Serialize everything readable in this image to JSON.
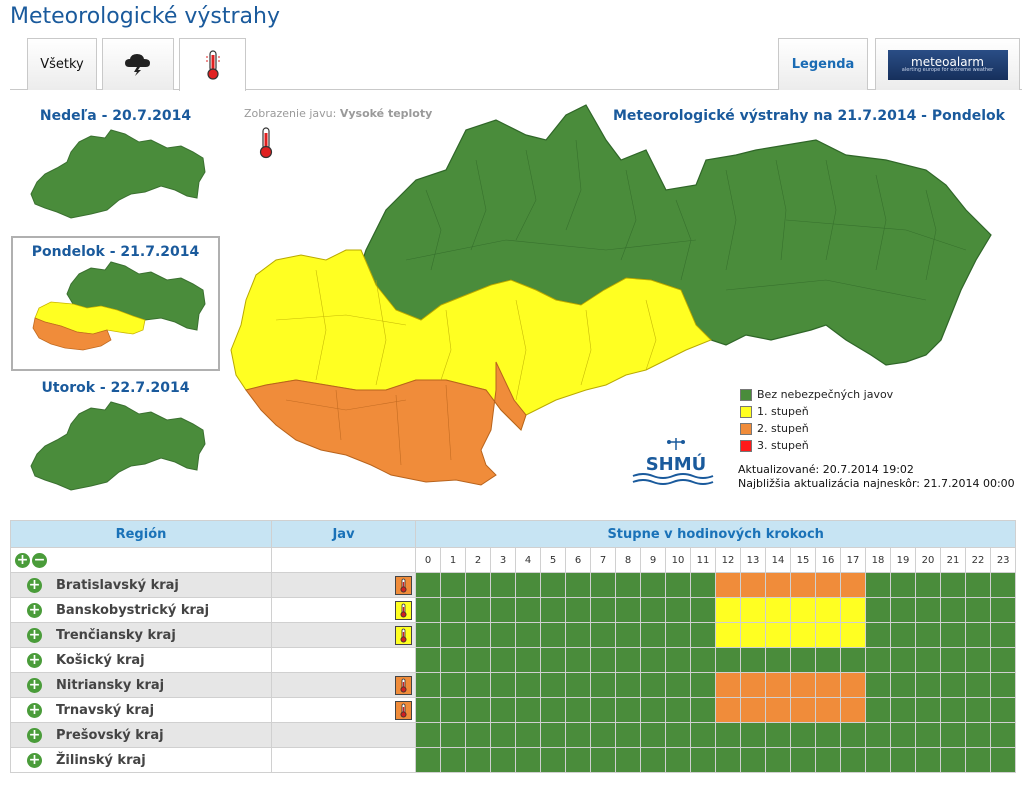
{
  "page": {
    "title": "Meteorologické výstrahy"
  },
  "tabs": {
    "all_label": "Všetky",
    "storm_icon": "storm-cloud-icon",
    "temperature_icon": "thermometer-icon",
    "legend_label": "Legenda",
    "meteoalarm_logo_main": "meteoalarm",
    "meteoalarm_logo_sub": "alerting europe for extreme weather"
  },
  "days": [
    {
      "title": "Nedeľa - 20.7.2014",
      "selected": false
    },
    {
      "title": "Pondelok - 21.7.2014",
      "selected": true
    },
    {
      "title": "Utorok - 22.7.2014",
      "selected": false
    }
  ],
  "display": {
    "label": "Zobrazenie javu:",
    "value": "Vysoké teploty"
  },
  "map": {
    "title": "Meteorologické výstrahy na 21.7.2014 - Pondelok"
  },
  "legend": [
    {
      "label": "Bez nebezpečných javov",
      "color": "#4a8c3b"
    },
    {
      "label": "1. stupeň",
      "color": "#ffff22"
    },
    {
      "label": "2. stupeň",
      "color": "#f08c3a"
    },
    {
      "label": "3. stupeň",
      "color": "#ff1a1a"
    }
  ],
  "logo": {
    "text": "SHMÚ"
  },
  "update": {
    "updated": "Aktualizované: 20.7.2014 19:02",
    "next": "Najbližšia aktualizácia najneskôr: 21.7.2014 00:00"
  },
  "table": {
    "headers": {
      "region": "Región",
      "phenomenon": "Jav",
      "steps": "Stupne v hodinových krokoch"
    },
    "hours": [
      "0",
      "1",
      "2",
      "3",
      "4",
      "5",
      "6",
      "7",
      "8",
      "9",
      "10",
      "11",
      "12",
      "13",
      "14",
      "15",
      "16",
      "17",
      "18",
      "19",
      "20",
      "21",
      "22",
      "23"
    ],
    "rows": [
      {
        "name": "Bratislavský kraj",
        "level": 2,
        "hours": [
          0,
          0,
          0,
          0,
          0,
          0,
          0,
          0,
          0,
          0,
          0,
          0,
          2,
          2,
          2,
          2,
          2,
          2,
          0,
          0,
          0,
          0,
          0,
          0
        ]
      },
      {
        "name": "Banskobystrický kraj",
        "level": 1,
        "hours": [
          0,
          0,
          0,
          0,
          0,
          0,
          0,
          0,
          0,
          0,
          0,
          0,
          1,
          1,
          1,
          1,
          1,
          1,
          0,
          0,
          0,
          0,
          0,
          0
        ]
      },
      {
        "name": "Trenčiansky kraj",
        "level": 1,
        "hours": [
          0,
          0,
          0,
          0,
          0,
          0,
          0,
          0,
          0,
          0,
          0,
          0,
          1,
          1,
          1,
          1,
          1,
          1,
          0,
          0,
          0,
          0,
          0,
          0
        ]
      },
      {
        "name": "Košický kraj",
        "level": 0,
        "hours": [
          0,
          0,
          0,
          0,
          0,
          0,
          0,
          0,
          0,
          0,
          0,
          0,
          0,
          0,
          0,
          0,
          0,
          0,
          0,
          0,
          0,
          0,
          0,
          0
        ]
      },
      {
        "name": "Nitriansky kraj",
        "level": 2,
        "hours": [
          0,
          0,
          0,
          0,
          0,
          0,
          0,
          0,
          0,
          0,
          0,
          0,
          2,
          2,
          2,
          2,
          2,
          2,
          0,
          0,
          0,
          0,
          0,
          0
        ]
      },
      {
        "name": "Trnavský kraj",
        "level": 2,
        "hours": [
          0,
          0,
          0,
          0,
          0,
          0,
          0,
          0,
          0,
          0,
          0,
          0,
          2,
          2,
          2,
          2,
          2,
          2,
          0,
          0,
          0,
          0,
          0,
          0
        ]
      },
      {
        "name": "Prešovský kraj",
        "level": 0,
        "hours": [
          0,
          0,
          0,
          0,
          0,
          0,
          0,
          0,
          0,
          0,
          0,
          0,
          0,
          0,
          0,
          0,
          0,
          0,
          0,
          0,
          0,
          0,
          0,
          0
        ]
      },
      {
        "name": "Žilinský kraj",
        "level": 0,
        "hours": [
          0,
          0,
          0,
          0,
          0,
          0,
          0,
          0,
          0,
          0,
          0,
          0,
          0,
          0,
          0,
          0,
          0,
          0,
          0,
          0,
          0,
          0,
          0,
          0
        ]
      }
    ]
  },
  "colors": {
    "accent": "#1a5a9c",
    "green": "#4a8c3b",
    "yellow": "#ffff22",
    "orange": "#f08c3a",
    "red": "#ff1a1a"
  }
}
